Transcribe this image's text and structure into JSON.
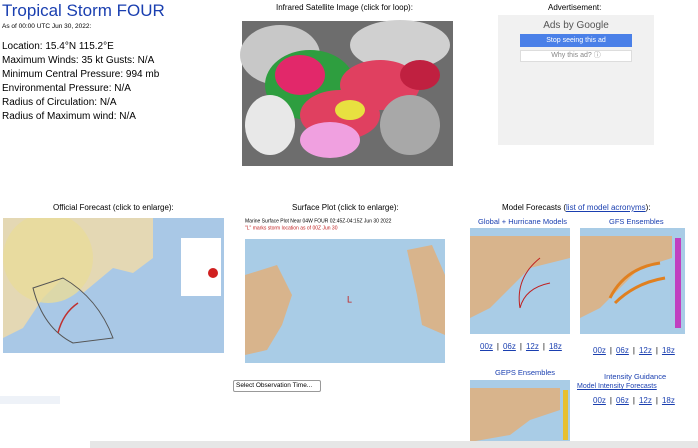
{
  "storm": {
    "title": "Tropical Storm FOUR",
    "as_of": "As of 00:00 UTC Jun 30, 2022:",
    "details": [
      "Location: 15.4°N 115.2°E",
      "Maximum Winds: 35 kt  Gusts: N/A",
      "Minimum Central Pressure: 994 mb",
      "Environmental Pressure: N/A",
      "Radius of Circulation: N/A",
      "Radius of Maximum wind: N/A"
    ]
  },
  "satellite": {
    "heading": "Infrared Satellite Image (click for loop):"
  },
  "advertisement": {
    "heading": "Advertisement:",
    "ads_by": "Ads by Google",
    "stop": "Stop seeing this ad",
    "why": "Why this ad? ⓘ"
  },
  "official": {
    "heading": "Official Forecast (click to enlarge):"
  },
  "surface": {
    "heading": "Surface Plot (click to enlarge):",
    "plot_title": "Marine Surface Plot Near 04W FOUR 02:45Z-04:15Z Jun 30 2022",
    "plot_note": "\"L\" marks storm location as of 00Z Jun 30",
    "storm_marker": "L",
    "select": "Select Observation Time..."
  },
  "models": {
    "heading_prefix": "Model Forecasts (",
    "acronyms_link": "list of model acronyms",
    "heading_suffix": "):",
    "separator": "|",
    "global": {
      "heading": "Global + Hurricane Models",
      "runs": [
        "00z",
        "06z",
        "12z",
        "18z"
      ]
    },
    "gfs": {
      "heading": "GFS Ensembles",
      "runs": [
        "00z",
        "06z",
        "12z",
        "18z"
      ]
    },
    "geps": {
      "heading": "GEPS Ensembles"
    },
    "intensity": {
      "heading": "Intensity Guidance",
      "link": "Model Intensity Forecasts",
      "runs": [
        "00z",
        "06z",
        "12z",
        "18z"
      ]
    }
  }
}
